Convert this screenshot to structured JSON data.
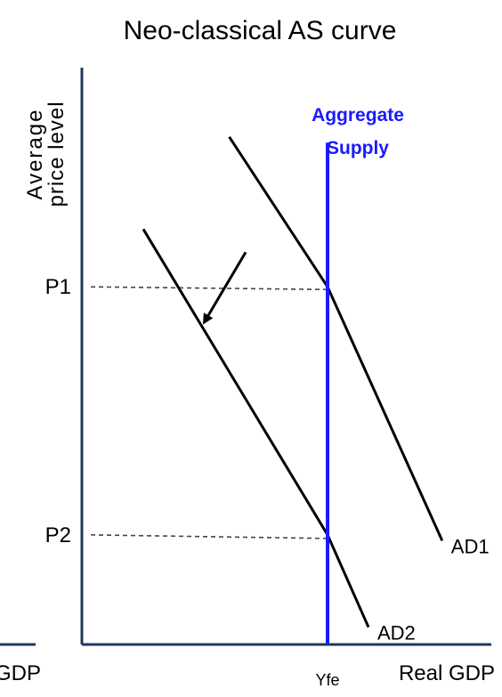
{
  "chart_data": {
    "type": "line",
    "title": "Neo-classical AS curve",
    "xlabel": "Real GDP",
    "ylabel_lines": [
      "Average",
      "price level"
    ],
    "cut_off_left_label": "GDP",
    "price_labels": [
      {
        "label": "P1",
        "value": 0.62
      },
      {
        "label": "P2",
        "value": 0.19
      }
    ],
    "x_tick_label": {
      "label": "Yfe",
      "value": 0.6
    },
    "aggregate_supply": {
      "label_lines": [
        "Aggregate",
        "Supply"
      ],
      "x": 0.6,
      "y_top": 0.87,
      "color": "#1a1aff"
    },
    "series": [
      {
        "name": "AD1",
        "points": [
          [
            0.36,
            0.88
          ],
          [
            0.6,
            0.62
          ],
          [
            0.88,
            0.18
          ]
        ]
      },
      {
        "name": "AD2",
        "points": [
          [
            0.15,
            0.72
          ],
          [
            0.6,
            0.19
          ],
          [
            0.7,
            0.03
          ]
        ]
      }
    ],
    "shift_arrow": {
      "from": [
        0.4,
        0.68
      ],
      "to": [
        0.3,
        0.56
      ]
    },
    "colors": {
      "axis": "#1f3a5c",
      "curve": "#000000",
      "supply": "#1a1aff",
      "guide": "#444444"
    }
  }
}
